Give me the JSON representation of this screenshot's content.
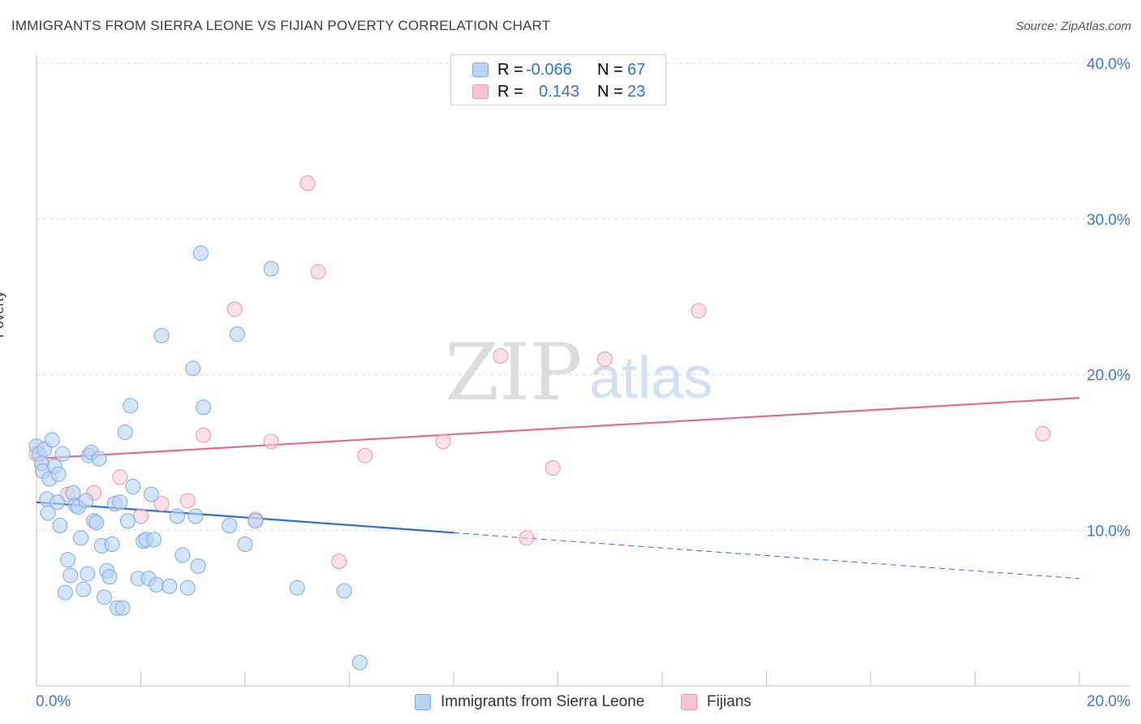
{
  "header": {
    "title": "IMMIGRANTS FROM SIERRA LEONE VS FIJIAN POVERTY CORRELATION CHART",
    "source": "Source: ZipAtlas.com"
  },
  "watermark": {
    "zip": "ZIP",
    "atlas": "atlas"
  },
  "colors": {
    "blue_fill": "#b9d3f5",
    "blue_stroke": "#7aa8e2",
    "blue_line": "#2a6fcb",
    "pink_fill": "#f7c6d6",
    "pink_stroke": "#ec93b1",
    "pink_line": "#e06b93",
    "axis_text": "#3f78c8",
    "grid": "#d9d9d9"
  },
  "legend": {
    "rows": [
      {
        "r_label": "R =",
        "r_value": "-0.066",
        "n_label": "N =",
        "n_value": "67"
      },
      {
        "r_label": "R =",
        "r_value": "0.143",
        "n_label": "N =",
        "n_value": "23"
      }
    ]
  },
  "bottom_legend": {
    "series1": "Immigrants from Sierra Leone",
    "series2": "Fijians"
  },
  "chart_data": {
    "type": "scatter",
    "ylabel": "Poverty",
    "xlim": [
      0,
      20
    ],
    "ylim": [
      0,
      40
    ],
    "x_tick_labels": [
      {
        "value": 0,
        "label": "0.0%"
      },
      {
        "value": 20,
        "label": "20.0%"
      }
    ],
    "y_tick_labels": [
      {
        "value": 10,
        "label": "10.0%"
      },
      {
        "value": 20,
        "label": "20.0%"
      },
      {
        "value": 30,
        "label": "30.0%"
      },
      {
        "value": 40,
        "label": "40.0%"
      }
    ],
    "grid": true,
    "legend_position": "top-center",
    "series": [
      {
        "name": "Immigrants from Sierra Leone",
        "color": "blue",
        "trend": {
          "x_start": 0,
          "y_start": 11.8,
          "x_solid_end": 8,
          "x_end": 20,
          "y_end": 6.9
        },
        "points": [
          [
            0.0,
            15.4
          ],
          [
            0.05,
            14.9
          ],
          [
            0.1,
            14.3
          ],
          [
            0.12,
            13.8
          ],
          [
            0.15,
            15.2
          ],
          [
            0.2,
            12.0
          ],
          [
            0.22,
            11.1
          ],
          [
            0.25,
            13.3
          ],
          [
            0.3,
            15.8
          ],
          [
            0.35,
            14.1
          ],
          [
            0.4,
            11.8
          ],
          [
            0.42,
            13.6
          ],
          [
            0.45,
            10.3
          ],
          [
            0.5,
            14.9
          ],
          [
            0.55,
            6.0
          ],
          [
            0.6,
            8.1
          ],
          [
            0.65,
            7.1
          ],
          [
            0.7,
            12.4
          ],
          [
            0.75,
            11.6
          ],
          [
            0.8,
            11.5
          ],
          [
            0.85,
            9.5
          ],
          [
            0.9,
            6.2
          ],
          [
            0.95,
            11.9
          ],
          [
            0.98,
            7.2
          ],
          [
            1.0,
            14.8
          ],
          [
            1.05,
            15.0
          ],
          [
            1.1,
            10.6
          ],
          [
            1.15,
            10.5
          ],
          [
            1.2,
            14.6
          ],
          [
            1.25,
            9.0
          ],
          [
            1.3,
            5.7
          ],
          [
            1.35,
            7.4
          ],
          [
            1.4,
            7.0
          ],
          [
            1.45,
            9.1
          ],
          [
            1.5,
            11.7
          ],
          [
            1.55,
            5.0
          ],
          [
            1.6,
            11.8
          ],
          [
            1.65,
            5.0
          ],
          [
            1.7,
            16.3
          ],
          [
            1.75,
            10.6
          ],
          [
            1.8,
            18.0
          ],
          [
            1.85,
            12.8
          ],
          [
            1.95,
            6.9
          ],
          [
            2.05,
            9.3
          ],
          [
            2.1,
            9.4
          ],
          [
            2.15,
            6.9
          ],
          [
            2.2,
            12.3
          ],
          [
            2.25,
            9.4
          ],
          [
            2.3,
            6.5
          ],
          [
            2.4,
            22.5
          ],
          [
            2.55,
            6.4
          ],
          [
            2.7,
            10.9
          ],
          [
            2.8,
            8.4
          ],
          [
            2.9,
            6.3
          ],
          [
            3.0,
            20.4
          ],
          [
            3.05,
            10.9
          ],
          [
            3.1,
            7.7
          ],
          [
            3.15,
            27.8
          ],
          [
            3.2,
            17.9
          ],
          [
            3.7,
            10.3
          ],
          [
            3.85,
            22.6
          ],
          [
            4.0,
            9.1
          ],
          [
            4.2,
            10.6
          ],
          [
            4.5,
            26.8
          ],
          [
            5.0,
            6.3
          ],
          [
            5.9,
            6.1
          ],
          [
            6.2,
            1.5
          ]
        ]
      },
      {
        "name": "Fijians",
        "color": "pink",
        "trend": {
          "x_start": 0,
          "y_start": 14.6,
          "x_end": 20,
          "y_end": 18.5
        },
        "points": [
          [
            0.0,
            14.9
          ],
          [
            0.1,
            14.3
          ],
          [
            0.6,
            12.3
          ],
          [
            1.1,
            12.4
          ],
          [
            1.6,
            13.4
          ],
          [
            2.0,
            10.9
          ],
          [
            2.4,
            11.7
          ],
          [
            2.9,
            11.9
          ],
          [
            3.2,
            16.1
          ],
          [
            3.8,
            24.2
          ],
          [
            4.2,
            10.7
          ],
          [
            4.5,
            15.7
          ],
          [
            5.2,
            32.3
          ],
          [
            5.4,
            26.6
          ],
          [
            5.8,
            8.0
          ],
          [
            6.3,
            14.8
          ],
          [
            7.8,
            15.7
          ],
          [
            8.9,
            21.2
          ],
          [
            9.4,
            9.5
          ],
          [
            9.9,
            14.0
          ],
          [
            10.9,
            21.0
          ],
          [
            12.7,
            24.1
          ],
          [
            19.3,
            16.2
          ]
        ]
      }
    ]
  }
}
